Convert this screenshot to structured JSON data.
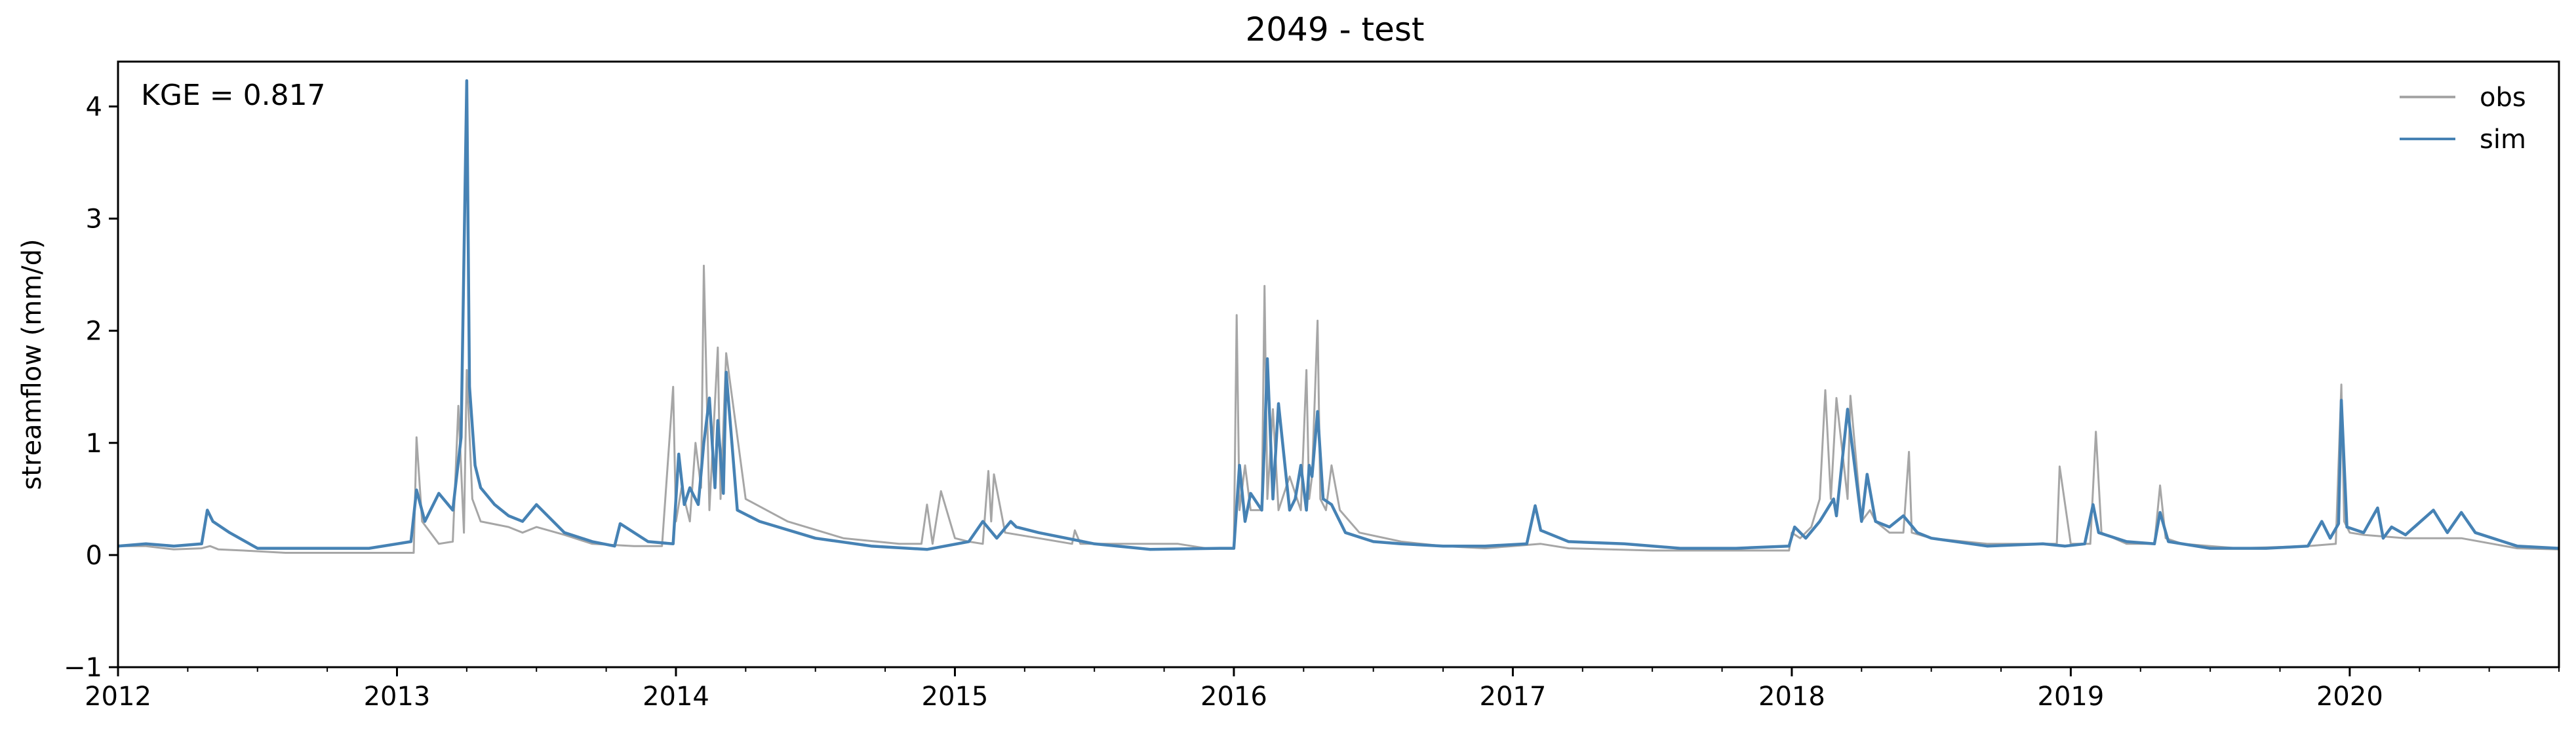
{
  "chart_data": {
    "type": "line",
    "title": "2049 - test",
    "xlabel": "",
    "ylabel": "streamflow (mm/d)",
    "annotation": "KGE = 0.817",
    "xlim": [
      2012.0,
      2020.75
    ],
    "ylim": [
      -1,
      4.4
    ],
    "x_ticks": [
      "2012",
      "2013",
      "2014",
      "2015",
      "2016",
      "2017",
      "2018",
      "2019",
      "2020"
    ],
    "y_ticks": [
      -1,
      0,
      1,
      2,
      3,
      4
    ],
    "grid": false,
    "legend_position": "top-right",
    "colors": {
      "obs": "#a6a6a6",
      "sim": "#4682b4"
    },
    "series": [
      {
        "name": "obs",
        "x": [
          2012.0,
          2012.1,
          2012.2,
          2012.3,
          2012.33,
          2012.36,
          2012.45,
          2012.6,
          2012.8,
          2012.95,
          2013.06,
          2013.07,
          2013.09,
          2013.15,
          2013.2,
          2013.22,
          2013.24,
          2013.25,
          2013.27,
          2013.3,
          2013.4,
          2013.45,
          2013.5,
          2013.6,
          2013.7,
          2013.85,
          2013.95,
          2013.99,
          2014.0,
          2014.02,
          2014.05,
          2014.07,
          2014.09,
          2014.1,
          2014.12,
          2014.15,
          2014.16,
          2014.18,
          2014.25,
          2014.4,
          2014.6,
          2014.8,
          2014.88,
          2014.9,
          2014.92,
          2014.95,
          2015.0,
          2015.05,
          2015.1,
          2015.12,
          2015.13,
          2015.14,
          2015.18,
          2015.3,
          2015.42,
          2015.43,
          2015.45,
          2015.6,
          2015.75,
          2015.8,
          2015.9,
          2016.0,
          2016.01,
          2016.02,
          2016.04,
          2016.06,
          2016.1,
          2016.11,
          2016.12,
          2016.14,
          2016.16,
          2016.2,
          2016.24,
          2016.26,
          2016.27,
          2016.28,
          2016.3,
          2016.31,
          2016.33,
          2016.35,
          2016.38,
          2016.45,
          2016.6,
          2016.75,
          2016.9,
          2017.0,
          2017.1,
          2017.2,
          2017.5,
          2017.8,
          2017.99,
          2018.0,
          2018.03,
          2018.07,
          2018.1,
          2018.12,
          2018.14,
          2018.16,
          2018.2,
          2018.21,
          2018.25,
          2018.28,
          2018.3,
          2018.35,
          2018.4,
          2018.42,
          2018.43,
          2018.5,
          2018.7,
          2018.9,
          2018.95,
          2018.96,
          2019.0,
          2019.07,
          2019.09,
          2019.11,
          2019.2,
          2019.3,
          2019.32,
          2019.34,
          2019.4,
          2019.6,
          2019.85,
          2019.95,
          2019.97,
          2019.98,
          2020.0,
          2020.05,
          2020.2,
          2020.4,
          2020.6,
          2020.75
        ],
        "y": [
          0.08,
          0.08,
          0.05,
          0.06,
          0.08,
          0.05,
          0.04,
          0.02,
          0.02,
          0.02,
          0.02,
          1.05,
          0.3,
          0.1,
          0.12,
          1.33,
          0.2,
          1.65,
          0.5,
          0.3,
          0.25,
          0.2,
          0.25,
          0.18,
          0.1,
          0.08,
          0.08,
          1.5,
          0.3,
          0.6,
          0.3,
          1.0,
          0.6,
          2.58,
          0.4,
          1.85,
          0.5,
          1.8,
          0.5,
          0.3,
          0.15,
          0.1,
          0.1,
          0.45,
          0.1,
          0.57,
          0.15,
          0.12,
          0.1,
          0.75,
          0.3,
          0.72,
          0.2,
          0.15,
          0.1,
          0.22,
          0.1,
          0.1,
          0.1,
          0.1,
          0.06,
          0.06,
          2.14,
          0.4,
          0.8,
          0.4,
          0.4,
          2.4,
          0.5,
          1.3,
          0.4,
          0.7,
          0.4,
          1.65,
          0.5,
          0.7,
          2.09,
          0.5,
          0.4,
          0.8,
          0.4,
          0.2,
          0.12,
          0.08,
          0.06,
          0.08,
          0.1,
          0.06,
          0.04,
          0.04,
          0.04,
          0.2,
          0.15,
          0.25,
          0.5,
          1.47,
          0.5,
          1.4,
          0.5,
          1.42,
          0.3,
          0.4,
          0.3,
          0.2,
          0.2,
          0.92,
          0.2,
          0.15,
          0.1,
          0.1,
          0.1,
          0.79,
          0.1,
          0.1,
          1.1,
          0.2,
          0.1,
          0.1,
          0.62,
          0.15,
          0.1,
          0.06,
          0.08,
          0.1,
          1.52,
          0.3,
          0.2,
          0.18,
          0.15,
          0.15,
          0.06,
          0.05
        ]
      },
      {
        "name": "sim",
        "x": [
          2012.0,
          2012.1,
          2012.2,
          2012.3,
          2012.32,
          2012.34,
          2012.4,
          2012.5,
          2012.7,
          2012.9,
          2013.0,
          2013.05,
          2013.07,
          2013.1,
          2013.15,
          2013.2,
          2013.23,
          2013.25,
          2013.26,
          2013.28,
          2013.3,
          2013.35,
          2013.4,
          2013.45,
          2013.5,
          2013.6,
          2013.7,
          2013.78,
          2013.8,
          2013.9,
          2013.99,
          2014.01,
          2014.03,
          2014.05,
          2014.08,
          2014.1,
          2014.12,
          2014.14,
          2014.15,
          2014.17,
          2014.18,
          2014.22,
          2014.3,
          2014.5,
          2014.7,
          2014.9,
          2015.05,
          2015.1,
          2015.15,
          2015.2,
          2015.22,
          2015.3,
          2015.5,
          2015.7,
          2015.95,
          2016.0,
          2016.02,
          2016.04,
          2016.06,
          2016.1,
          2016.11,
          2016.12,
          2016.14,
          2016.16,
          2016.2,
          2016.22,
          2016.24,
          2016.26,
          2016.27,
          2016.28,
          2016.3,
          2016.32,
          2016.35,
          2016.4,
          2016.5,
          2016.6,
          2016.75,
          2016.9,
          2017.05,
          2017.08,
          2017.1,
          2017.2,
          2017.4,
          2017.6,
          2017.8,
          2017.99,
          2018.01,
          2018.05,
          2018.1,
          2018.15,
          2018.16,
          2018.2,
          2018.25,
          2018.27,
          2018.3,
          2018.35,
          2018.4,
          2018.45,
          2018.5,
          2018.7,
          2018.9,
          2018.98,
          2019.05,
          2019.08,
          2019.1,
          2019.2,
          2019.3,
          2019.32,
          2019.35,
          2019.5,
          2019.7,
          2019.85,
          2019.9,
          2019.93,
          2019.96,
          2019.97,
          2019.99,
          2020.05,
          2020.1,
          2020.12,
          2020.15,
          2020.2,
          2020.3,
          2020.35,
          2020.4,
          2020.45,
          2020.6,
          2020.75
        ],
        "y": [
          0.08,
          0.1,
          0.08,
          0.1,
          0.4,
          0.3,
          0.2,
          0.06,
          0.06,
          0.06,
          0.1,
          0.12,
          0.58,
          0.3,
          0.55,
          0.4,
          1.05,
          4.23,
          1.5,
          0.8,
          0.6,
          0.45,
          0.35,
          0.3,
          0.45,
          0.2,
          0.12,
          0.08,
          0.28,
          0.12,
          0.1,
          0.9,
          0.45,
          0.6,
          0.45,
          1.0,
          1.4,
          0.6,
          1.2,
          0.55,
          1.63,
          0.4,
          0.3,
          0.15,
          0.08,
          0.05,
          0.12,
          0.3,
          0.15,
          0.3,
          0.25,
          0.2,
          0.1,
          0.05,
          0.06,
          0.06,
          0.8,
          0.3,
          0.55,
          0.4,
          1.0,
          1.75,
          0.5,
          1.35,
          0.4,
          0.5,
          0.8,
          0.4,
          0.8,
          0.7,
          1.28,
          0.5,
          0.45,
          0.2,
          0.12,
          0.1,
          0.08,
          0.08,
          0.1,
          0.44,
          0.22,
          0.12,
          0.1,
          0.06,
          0.06,
          0.08,
          0.25,
          0.15,
          0.3,
          0.5,
          0.35,
          1.3,
          0.3,
          0.72,
          0.3,
          0.25,
          0.35,
          0.2,
          0.15,
          0.08,
          0.1,
          0.08,
          0.1,
          0.45,
          0.2,
          0.12,
          0.1,
          0.38,
          0.12,
          0.06,
          0.06,
          0.08,
          0.3,
          0.15,
          0.28,
          1.38,
          0.25,
          0.2,
          0.42,
          0.15,
          0.25,
          0.18,
          0.4,
          0.2,
          0.38,
          0.2,
          0.08,
          0.06
        ]
      }
    ]
  }
}
